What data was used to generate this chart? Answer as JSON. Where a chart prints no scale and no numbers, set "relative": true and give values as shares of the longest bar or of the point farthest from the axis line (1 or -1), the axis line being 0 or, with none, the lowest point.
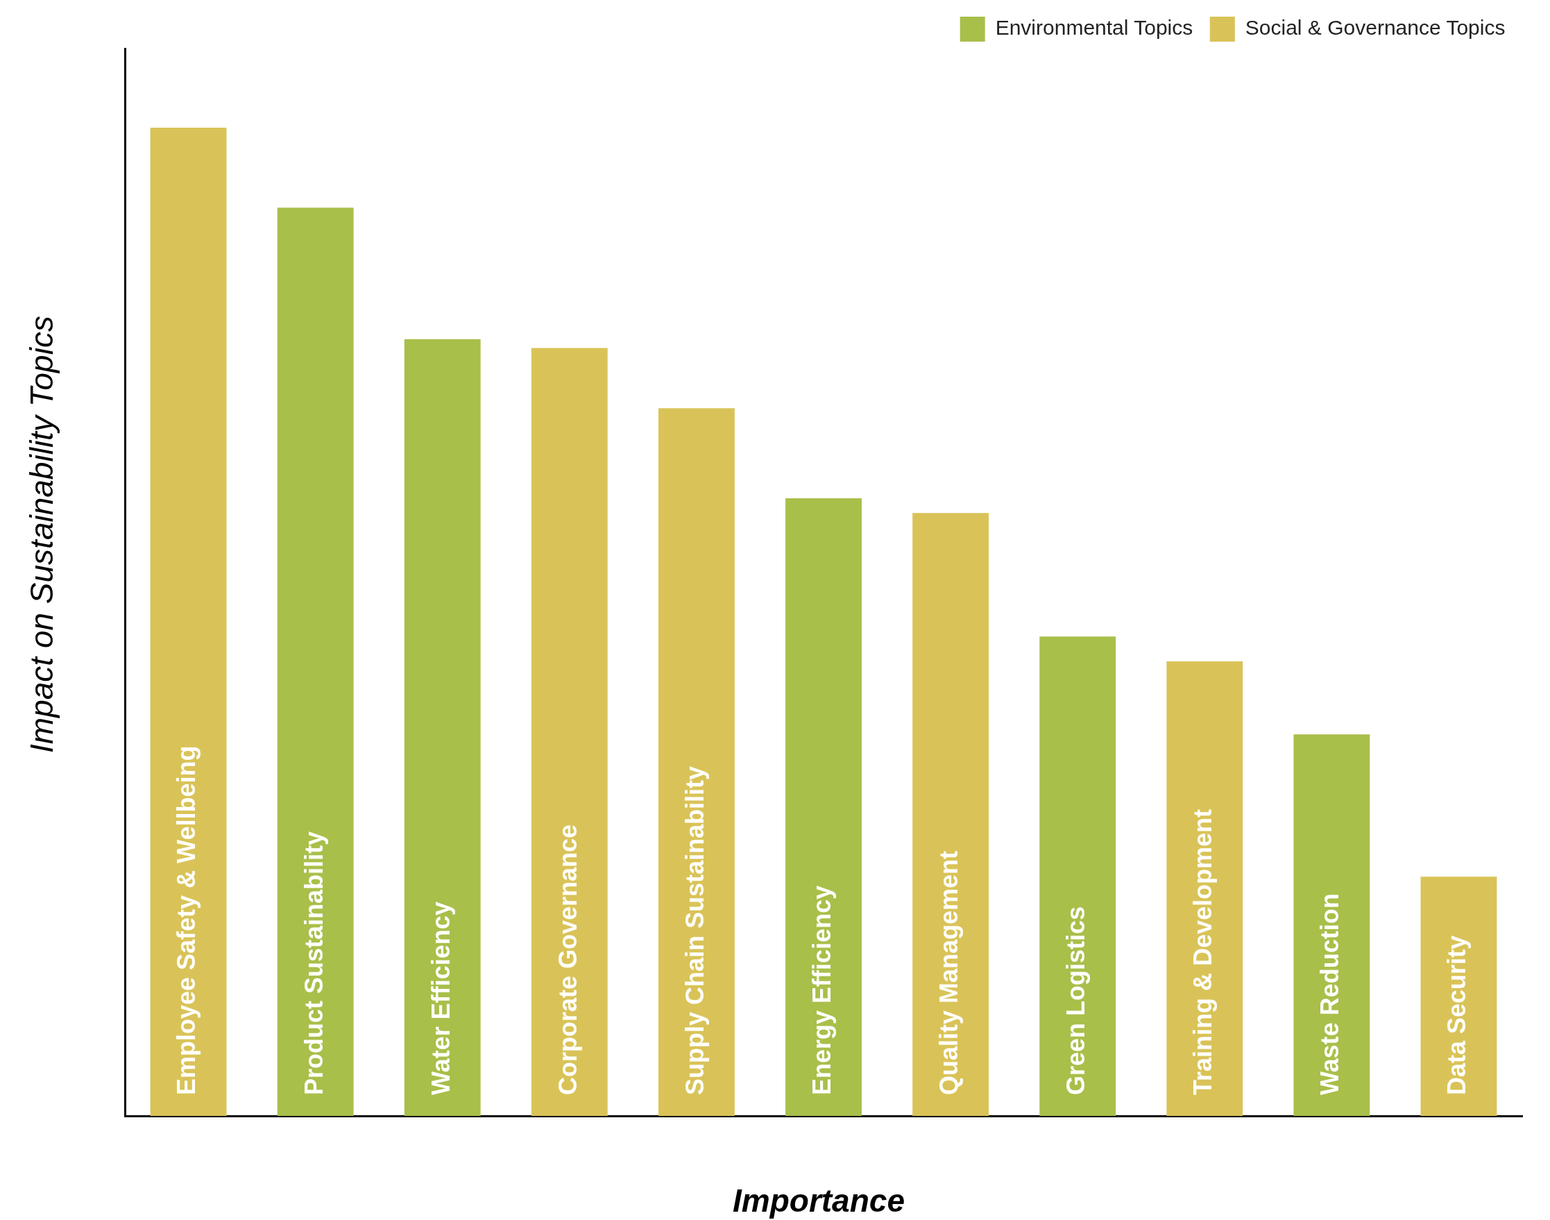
{
  "chart_data": {
    "type": "bar",
    "relative": true,
    "xlabel": "Importance",
    "ylabel": "Impact on Sustainability Topics",
    "legend": "top right",
    "grid": false,
    "categories": [
      "Employee Safety & Wellbeing",
      "Product Sustainability",
      "Water Efficiency",
      "Corporate Governance",
      "Supply Chain Sustainability",
      "Energy Efficiency",
      "Quality Management",
      "Green Logistics",
      "Training & Development",
      "Waste Reduction",
      "Data Security"
    ],
    "series": [
      {
        "name": "Environmental Topics",
        "color": "#a8bf4a",
        "values": [
          null,
          0.919,
          0.786,
          null,
          null,
          0.625,
          null,
          0.485,
          null,
          0.386,
          null
        ]
      },
      {
        "name": "Social & Governance Topics",
        "color": "#d9c358",
        "values": [
          1,
          null,
          null,
          0.777,
          0.716,
          null,
          0.61,
          null,
          0.46,
          null,
          0.242
        ]
      }
    ]
  }
}
